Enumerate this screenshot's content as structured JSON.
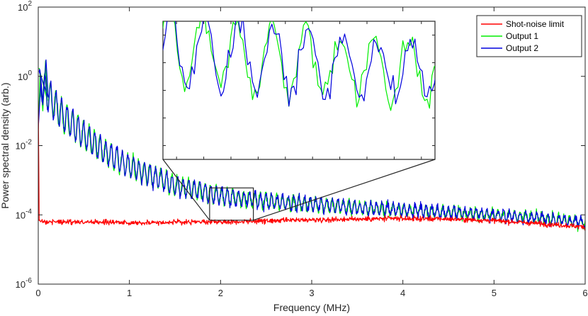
{
  "chart_data": {
    "type": "line",
    "xlabel": "Frequency (MHz)",
    "ylabel": "Power spectral density (arb.)",
    "xlim": [
      0,
      6
    ],
    "ylim": [
      1e-06,
      100
    ],
    "yscale": "log",
    "xticks": [
      0,
      1,
      2,
      3,
      4,
      5,
      6
    ],
    "xtick_labels": [
      "0",
      "1",
      "2",
      "3",
      "4",
      "5",
      "6"
    ],
    "yticks": [
      {
        "base": "10",
        "exp": "-6",
        "value": 1e-06
      },
      {
        "base": "10",
        "exp": "-4",
        "value": 0.0001
      },
      {
        "base": "10",
        "exp": "-2",
        "value": 0.01
      },
      {
        "base": "10",
        "exp": "0",
        "value": 1
      },
      {
        "base": "10",
        "exp": "2",
        "value": 100
      }
    ],
    "grid": false,
    "legend_position": "top-right",
    "series": [
      {
        "name": "Shot-noise limit",
        "color": "#ff0000",
        "description_points": {
          "x": [
            0,
            0.5,
            1,
            1.5,
            2,
            2.5,
            3,
            3.5,
            4,
            4.5,
            5,
            5.5,
            6
          ],
          "y": [
            6.5e-05,
            6.2e-05,
            6e-05,
            6.1e-05,
            6.3e-05,
            6.6e-05,
            7.2e-05,
            7.6e-05,
            7.8e-05,
            7.6e-05,
            6.8e-05,
            5.6e-05,
            4.5e-05
          ]
        }
      },
      {
        "name": "Output 1",
        "color": "#00ee00",
        "description_points": {
          "x": [
            0.05,
            0.25,
            0.5,
            0.75,
            1,
            1.5,
            2,
            2.5,
            3,
            3.5,
            4,
            4.5,
            5,
            5.5,
            6
          ],
          "y": [
            0.5,
            0.08,
            0.02,
            0.006,
            0.0025,
            0.0007,
            0.00035,
            0.00025,
            0.0002,
            0.00016,
            0.00014,
            0.00012,
            0.0001,
            8e-05,
            6e-05
          ]
        }
      },
      {
        "name": "Output 2",
        "color": "#0000dd",
        "description_points": {
          "x": [
            0.05,
            0.25,
            0.5,
            0.75,
            1,
            1.5,
            2,
            2.5,
            3,
            3.5,
            4,
            4.5,
            5,
            5.5,
            6
          ],
          "y": [
            0.5,
            0.08,
            0.02,
            0.006,
            0.0025,
            0.0007,
            0.00035,
            0.00025,
            0.0002,
            0.00016,
            0.00014,
            0.00012,
            0.0001,
            8e-05,
            6e-05
          ]
        }
      }
    ],
    "inset": {
      "zoom_xlim": [
        1.88,
        2.36
      ],
      "zoom_ylim": [
        7e-05,
        0.0006
      ],
      "description": "magnified view of Output 1 and Output 2 oscillation between about 1.9 and 2.35 MHz"
    }
  }
}
